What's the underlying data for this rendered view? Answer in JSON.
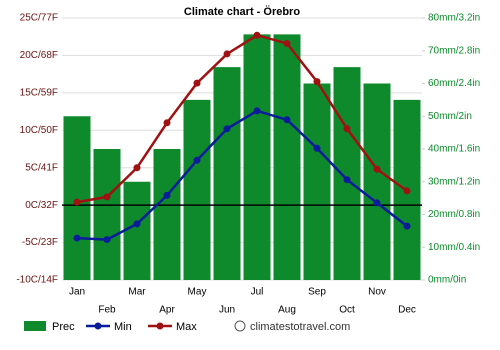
{
  "chart_data": {
    "type": "combo",
    "title": "Climate chart - Örebro",
    "categories": [
      "Jan",
      "Feb",
      "Mar",
      "Apr",
      "May",
      "Jun",
      "Jul",
      "Aug",
      "Sep",
      "Oct",
      "Nov",
      "Dec"
    ],
    "series": [
      {
        "name": "Prec",
        "type": "bar",
        "axis": "y2",
        "color": "#0e8a2c",
        "values": [
          50,
          40,
          30,
          40,
          55,
          65,
          75,
          75,
          60,
          65,
          60,
          55
        ]
      },
      {
        "name": "Min",
        "type": "line",
        "color": "#0a1c9a",
        "values": [
          -4.4,
          -4.6,
          -2.5,
          1.3,
          6,
          10.2,
          12.6,
          11.4,
          7.6,
          3.4,
          0.3,
          -2.8
        ]
      },
      {
        "name": "Max",
        "type": "line",
        "color": "#a01212",
        "values": [
          0.4,
          1.1,
          5,
          11,
          16.3,
          20.2,
          22.7,
          21.6,
          16.5,
          10.2,
          4.8,
          1.9
        ]
      }
    ],
    "ylim": [
      -10,
      25
    ],
    "yticks": [
      {
        "value": -10,
        "label": "-10C/14F"
      },
      {
        "value": -5,
        "label": "-5C/23F"
      },
      {
        "value": 0,
        "label": "0C/32F"
      },
      {
        "value": 5,
        "label": "5C/41F"
      },
      {
        "value": 10,
        "label": "10C/50F"
      },
      {
        "value": 15,
        "label": "15C/59F"
      },
      {
        "value": 20,
        "label": "20C/68F"
      },
      {
        "value": 25,
        "label": "25C/77F"
      }
    ],
    "y2lim": [
      0,
      80
    ],
    "y2ticks": [
      {
        "value": 0,
        "label": "0mm/0in"
      },
      {
        "value": 10,
        "label": "10mm/0.4in"
      },
      {
        "value": 20,
        "label": "20mm/0.8in"
      },
      {
        "value": 30,
        "label": "30mm/1.2in"
      },
      {
        "value": 40,
        "label": "40mm/1.6in"
      },
      {
        "value": 50,
        "label": "50mm/2in"
      },
      {
        "value": 60,
        "label": "60mm/2.4in"
      },
      {
        "value": 70,
        "label": "70mm/2.8in"
      },
      {
        "value": 80,
        "label": "80mm/3.2in"
      }
    ],
    "grid": true,
    "source": "climatestotravel.com"
  }
}
